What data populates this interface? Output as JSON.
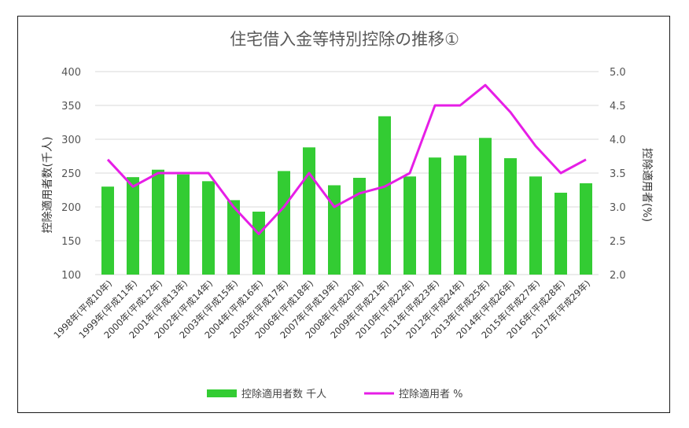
{
  "chart_data": {
    "type": "bar",
    "title": "住宅借入金等特別控除の推移①",
    "categories": [
      "1998年(平成10年)",
      "1999年(平成11年)",
      "2000年(平成12年)",
      "2001年(平成13年)",
      "2002年(平成14年)",
      "2003年(平成15年)",
      "2004年(平成16年)",
      "2005年(平成17年)",
      "2006年(平成18年)",
      "2007年(平成19年)",
      "2008年(平成20年)",
      "2009年(平成21年)",
      "2010年(平成22年)",
      "2011年(平成23年)",
      "2012年(平成24年)",
      "2013年(平成25年)",
      "2014年(平成26年)",
      "2015年(平成27年)",
      "2016年(平成28年)",
      "2017年(平成29年)"
    ],
    "ylabel": "控除適用者数(千人)",
    "y2label": "控除適用者(%)",
    "ylim": [
      100,
      400
    ],
    "y2lim": [
      2.0,
      5.0
    ],
    "yticks": [
      "100",
      "150",
      "200",
      "250",
      "300",
      "350",
      "400"
    ],
    "y2ticks": [
      "2.0",
      "2.5",
      "3.0",
      "3.5",
      "4.0",
      "4.5",
      "5.0"
    ],
    "grid": true,
    "legend_position": "bottom",
    "series": [
      {
        "name": "控除適用者数 千人",
        "type": "bar",
        "axis": "left",
        "color": "#33cc33",
        "values": [
          230,
          244,
          255,
          248,
          238,
          210,
          193,
          253,
          288,
          232,
          243,
          334,
          245,
          273,
          276,
          302,
          272,
          245,
          221,
          235
        ]
      },
      {
        "name": "控除適用者 %",
        "type": "line",
        "axis": "right",
        "color": "#e61ee6",
        "values": [
          3.7,
          3.3,
          3.5,
          3.5,
          3.5,
          3.0,
          2.6,
          3.0,
          3.5,
          3.0,
          3.2,
          3.3,
          3.5,
          4.5,
          4.5,
          4.8,
          4.4,
          3.9,
          3.5,
          3.7
        ]
      }
    ]
  }
}
